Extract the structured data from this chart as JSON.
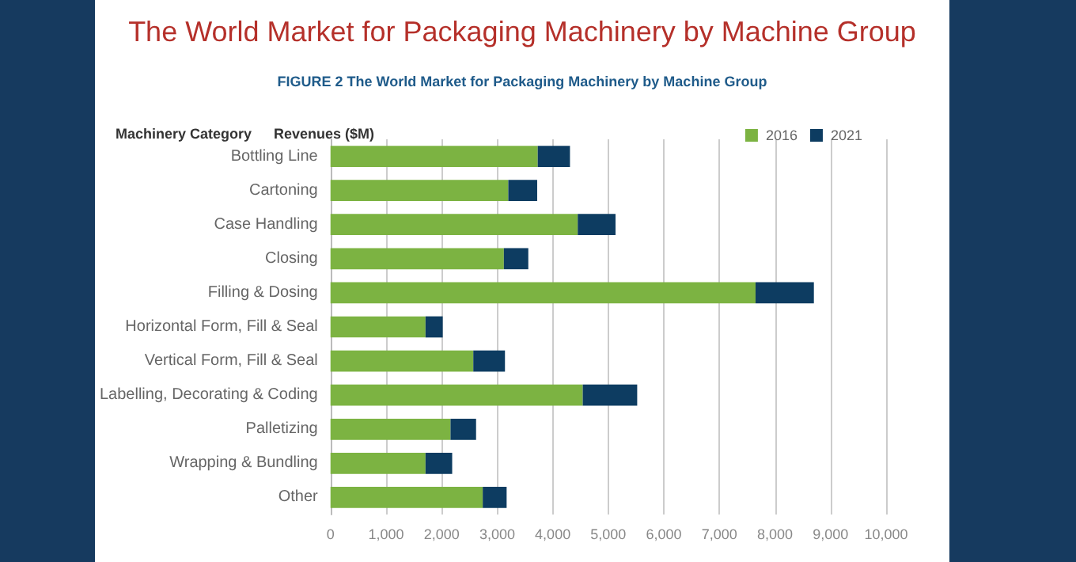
{
  "chart_data": {
    "type": "bar",
    "orientation": "horizontal",
    "stacked": true,
    "title": "The World Market for Packaging Machinery by Machine Group",
    "subtitle": "FIGURE 2 The World Market for Packaging Machinery by Machine Group",
    "xlabel": "Revenues ($M)",
    "ylabel": "Machinery Category",
    "categories": [
      "Bottling Line",
      "Cartoning",
      "Case Handling",
      "Closing",
      "Filling & Dosing",
      "Horizontal Form, Fill & Seal",
      "Vertical Form, Fill & Seal",
      "Labelling, Decorating & Coding",
      "Palletizing",
      "Wrapping & Bundling",
      "Other"
    ],
    "series": [
      {
        "name": "2016",
        "color": "#7cb342",
        "values": [
          3730,
          3200,
          4450,
          3120,
          7650,
          1710,
          2570,
          4540,
          2160,
          1710,
          2740
        ]
      },
      {
        "name": "2021",
        "color": "#0d3c61",
        "values": [
          580,
          520,
          680,
          440,
          1050,
          310,
          570,
          980,
          460,
          480,
          430
        ]
      }
    ],
    "xlim": [
      0,
      10000
    ],
    "xticks": [
      {
        "value": 0,
        "label": "0"
      },
      {
        "value": 1000,
        "label": "1,000"
      },
      {
        "value": 2000,
        "label": "2,000"
      },
      {
        "value": 3000,
        "label": "3,000"
      },
      {
        "value": 4000,
        "label": "4,000"
      },
      {
        "value": 5000,
        "label": "5,000"
      },
      {
        "value": 6000,
        "label": "6,000"
      },
      {
        "value": 7000,
        "label": "7,000"
      },
      {
        "value": 8000,
        "label": "8,000"
      },
      {
        "value": 9000,
        "label": "9,000"
      },
      {
        "value": 10000,
        "label": "10,000"
      }
    ],
    "grid": "x",
    "legend": "top right"
  }
}
